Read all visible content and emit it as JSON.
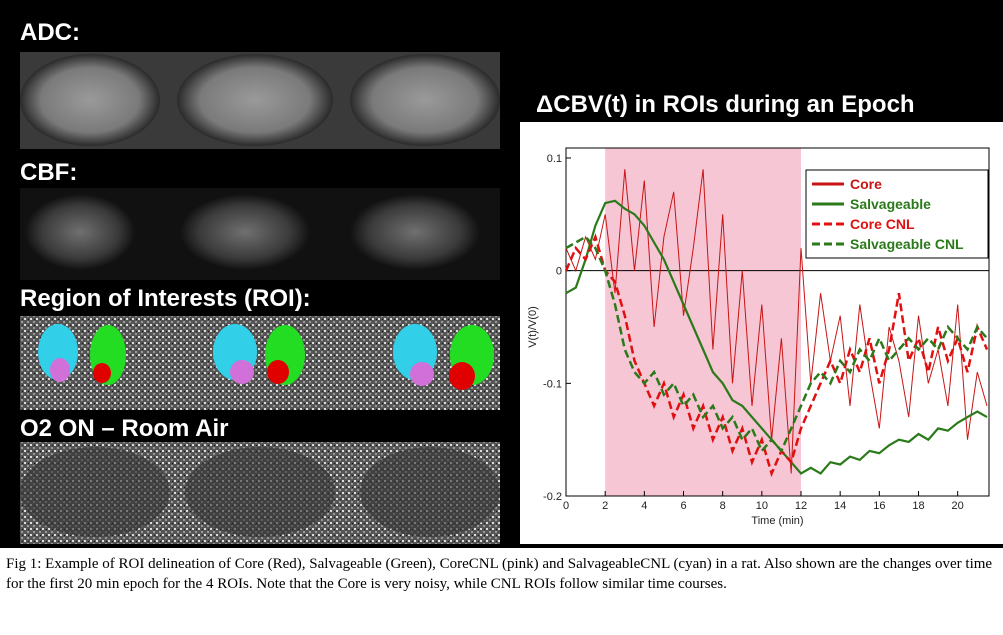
{
  "panels": {
    "adc": "ADC:",
    "cbf": "CBF:",
    "roi": "Region of Interests (ROI):",
    "o2": "O2 ON – Room Air"
  },
  "caption": "Fig 1: Example of ROI delineation of Core (Red), Salvageable (Green), CoreCNL (pink) and SalvageableCNL (cyan) in a rat. Also shown are the changes over time for the first 20 min epoch for the 4 ROIs. Note that the Core is very noisy, while CNL ROIs follow similar time courses.",
  "chart_data": {
    "type": "line",
    "title": "ΔCBV(t) in ROIs during an Epoch",
    "x_label": "Time (min)",
    "y_label": "V(t)/V(0)",
    "xlim": [
      0,
      21.6
    ],
    "ylim": [
      -0.2,
      0.1
    ],
    "xticks": [
      0,
      2,
      4,
      6,
      8,
      10,
      12,
      14,
      16,
      18,
      20
    ],
    "yticks": [
      -0.2,
      -0.1,
      0,
      0.1
    ],
    "shade": [
      2,
      12
    ],
    "shade_color": "#f7c6d4",
    "zero_line": true,
    "legend": "top-right",
    "x": [
      0,
      0.5,
      1,
      1.5,
      2,
      2.5,
      3,
      3.5,
      4,
      4.5,
      5,
      5.5,
      6,
      6.5,
      7,
      7.5,
      8,
      8.5,
      9,
      9.5,
      10,
      10.5,
      11,
      11.5,
      12,
      12.5,
      13,
      13.5,
      14,
      14.5,
      15,
      15.5,
      16,
      16.5,
      17,
      17.5,
      18,
      18.5,
      19,
      19.5,
      20,
      20.5,
      21,
      21.5
    ],
    "series": [
      {
        "name": "Core",
        "color": "#c81414",
        "dash": false,
        "width": 1,
        "values": [
          0.02,
          0.0,
          0.03,
          0.01,
          0.05,
          -0.02,
          0.09,
          0.0,
          0.08,
          -0.05,
          0.03,
          0.07,
          -0.04,
          0.02,
          0.09,
          -0.07,
          0.05,
          -0.1,
          0.0,
          -0.12,
          -0.03,
          -0.15,
          -0.06,
          -0.18,
          0.02,
          -0.1,
          -0.02,
          -0.08,
          -0.04,
          -0.12,
          -0.03,
          -0.09,
          -0.14,
          -0.05,
          -0.08,
          -0.13,
          -0.04,
          -0.1,
          -0.07,
          -0.12,
          -0.03,
          -0.15,
          -0.09,
          -0.12
        ]
      },
      {
        "name": "Salvageable",
        "color": "#2a7a1a",
        "dash": false,
        "width": 2.2,
        "values": [
          -0.02,
          -0.015,
          0.01,
          0.04,
          0.06,
          0.062,
          0.055,
          0.05,
          0.04,
          0.025,
          0.01,
          -0.01,
          -0.03,
          -0.05,
          -0.07,
          -0.09,
          -0.1,
          -0.115,
          -0.12,
          -0.13,
          -0.14,
          -0.15,
          -0.16,
          -0.17,
          -0.18,
          -0.175,
          -0.18,
          -0.17,
          -0.172,
          -0.165,
          -0.168,
          -0.16,
          -0.162,
          -0.155,
          -0.15,
          -0.152,
          -0.145,
          -0.15,
          -0.14,
          -0.142,
          -0.135,
          -0.13,
          -0.125,
          -0.13
        ]
      },
      {
        "name": "Core CNL",
        "color": "#e01010",
        "dash": true,
        "width": 2.5,
        "values": [
          0.0,
          0.02,
          0.01,
          0.03,
          0.0,
          -0.01,
          -0.04,
          -0.08,
          -0.1,
          -0.12,
          -0.1,
          -0.13,
          -0.11,
          -0.14,
          -0.12,
          -0.15,
          -0.13,
          -0.16,
          -0.14,
          -0.17,
          -0.15,
          -0.18,
          -0.16,
          -0.17,
          -0.14,
          -0.12,
          -0.1,
          -0.08,
          -0.1,
          -0.07,
          -0.09,
          -0.06,
          -0.1,
          -0.07,
          -0.02,
          -0.08,
          -0.06,
          -0.09,
          -0.05,
          -0.08,
          -0.06,
          -0.09,
          -0.05,
          -0.07
        ]
      },
      {
        "name": "Salvageable CNL",
        "color": "#2a7a1a",
        "dash": true,
        "width": 2.5,
        "values": [
          0.02,
          0.025,
          0.03,
          0.02,
          0.0,
          -0.03,
          -0.07,
          -0.09,
          -0.1,
          -0.09,
          -0.11,
          -0.1,
          -0.12,
          -0.11,
          -0.13,
          -0.12,
          -0.14,
          -0.13,
          -0.15,
          -0.14,
          -0.16,
          -0.15,
          -0.16,
          -0.14,
          -0.12,
          -0.1,
          -0.09,
          -0.1,
          -0.08,
          -0.09,
          -0.07,
          -0.08,
          -0.06,
          -0.08,
          -0.07,
          -0.06,
          -0.07,
          -0.06,
          -0.07,
          -0.05,
          -0.06,
          -0.07,
          -0.05,
          -0.06
        ]
      }
    ]
  }
}
